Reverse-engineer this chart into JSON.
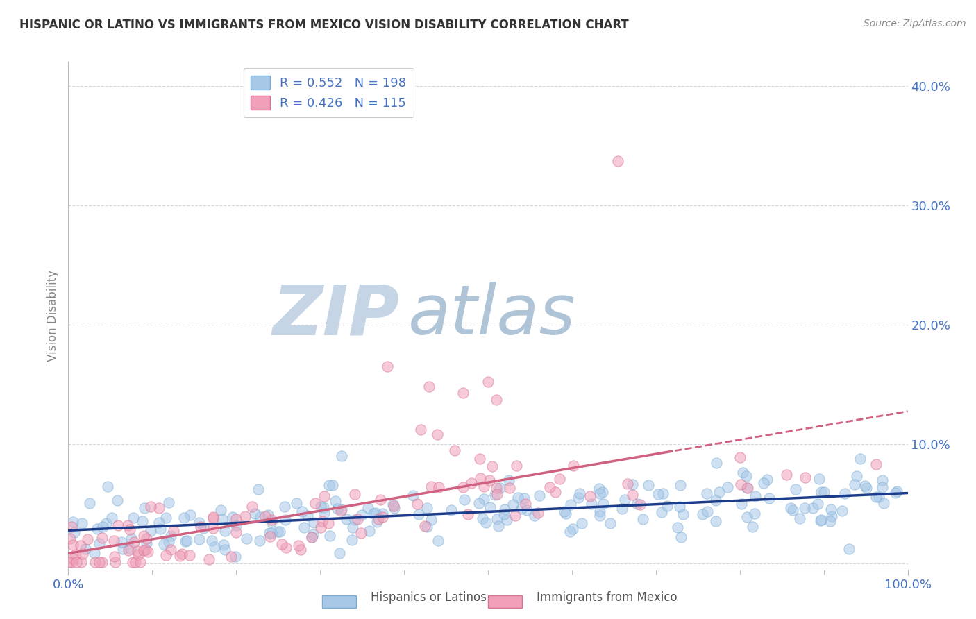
{
  "title": "HISPANIC OR LATINO VS IMMIGRANTS FROM MEXICO VISION DISABILITY CORRELATION CHART",
  "source": "Source: ZipAtlas.com",
  "xlabel": "",
  "ylabel": "Vision Disability",
  "xlim": [
    0.0,
    1.0
  ],
  "ylim": [
    -0.005,
    0.42
  ],
  "yticks": [
    0.0,
    0.1,
    0.2,
    0.3,
    0.4
  ],
  "blue_color": "#A8C8E8",
  "blue_edge_color": "#7AADD4",
  "blue_line_color": "#1A3C8A",
  "pink_color": "#F0A0B8",
  "pink_edge_color": "#D87090",
  "pink_line_color": "#D06080",
  "legend_text_color": "#4472C4",
  "axis_color": "#CCCCCC",
  "grid_color": "#BBBBCC",
  "watermark_color_zip": "#C8D4E8",
  "watermark_color_atlas": "#B8C8D8",
  "background_color": "#FFFFFF",
  "label_blue": "Hispanics or Latinos",
  "label_pink": "Immigrants from Mexico",
  "blue_r": 0.552,
  "blue_n": 198,
  "pink_r": 0.426,
  "pink_n": 115,
  "seed": 42
}
